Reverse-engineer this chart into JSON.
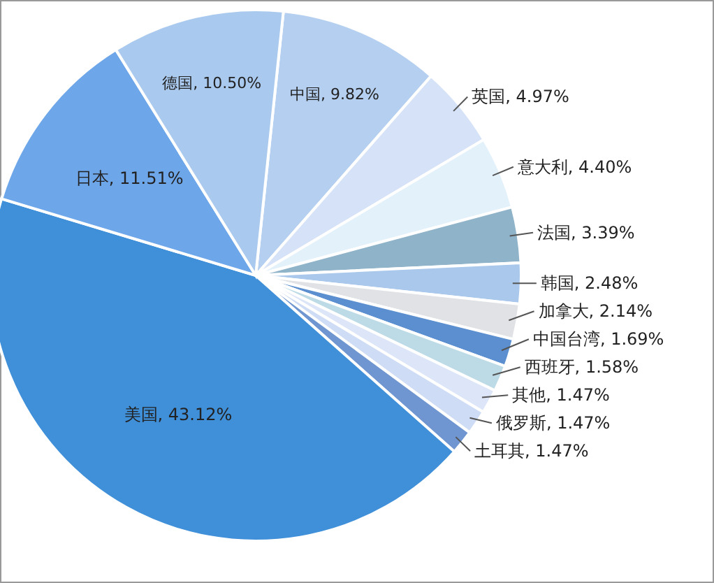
{
  "chart_data": {
    "type": "pie",
    "categories": [
      "中国",
      "英国",
      "意大利",
      "法国",
      "韩国",
      "加拿大",
      "中国台湾",
      "西班牙",
      "其他",
      "俄罗斯",
      "土耳其",
      "美国",
      "日本",
      "德国"
    ],
    "values": [
      9.82,
      4.97,
      4.4,
      3.39,
      2.48,
      2.14,
      1.69,
      1.58,
      1.47,
      1.47,
      1.47,
      43.12,
      11.51,
      10.5
    ],
    "value_labels": [
      "9.82%",
      "4.97%",
      "4.40%",
      "3.39%",
      "2.48%",
      "2.14%",
      "1.69%",
      "1.58%",
      "1.47%",
      "1.47%",
      "1.47%",
      "43.12%",
      "11.51%",
      "10.50%"
    ],
    "colors": [
      "#b4cff0",
      "#d6e2f7",
      "#e3f1fb",
      "#8fb3c9",
      "#a9c8ec",
      "#e0e2e6",
      "#5b8fd0",
      "#bcdbe6",
      "#dce6f8",
      "#cfdcf5",
      "#6f96d0",
      "#3f8fd9",
      "#6ea6ea",
      "#a9c9ee"
    ]
  }
}
